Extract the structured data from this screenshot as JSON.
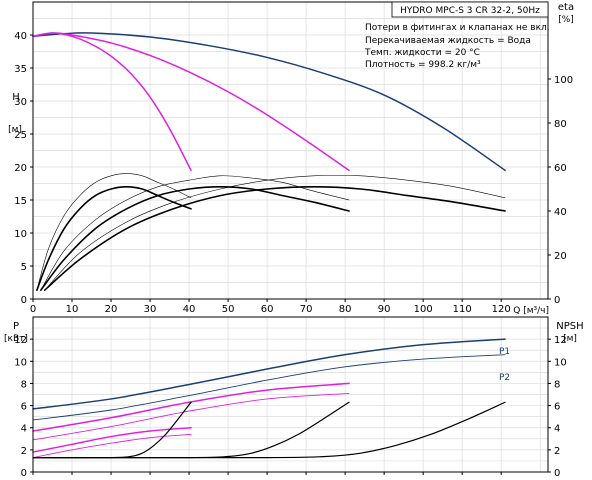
{
  "chart_data": [
    {
      "type": "line",
      "title": "HYDRO MPC-S 3 CR 32-2, 50Hz",
      "annotations": [
        "Потери в фитингах и клапанах не вкл.",
        "Перекачиваемая жидкость = Вода",
        "Темп. жидкости = 20 °C",
        "Плотность = 998.2 кг/м³"
      ],
      "xlabel": "Q [м³/ч]",
      "x_ticks": [
        0,
        10,
        20,
        30,
        40,
        50,
        60,
        70,
        80,
        90,
        100,
        110,
        120
      ],
      "xlim": [
        0,
        132
      ],
      "ylabel": "H",
      "yunit": "[м]",
      "ylim": [
        0,
        45
      ],
      "y_ticks": [
        0,
        5,
        10,
        15,
        20,
        25,
        30,
        35,
        40
      ],
      "y2label": "eta",
      "y2unit": "[%]",
      "y2lim": [
        0,
        135
      ],
      "y2_ticks": [
        0,
        20,
        40,
        60,
        80,
        100
      ],
      "grid": true,
      "series": [
        {
          "kind": "head",
          "color": "#1a3f73",
          "axis": "left",
          "x": [
            0,
            8,
            15,
            30,
            45,
            60,
            75,
            90,
            105,
            121
          ],
          "y": [
            39.8,
            40.2,
            40.3,
            39.7,
            38.4,
            36.6,
            34.1,
            30.9,
            26.0,
            19.5
          ]
        },
        {
          "kind": "head",
          "color": "#e020e0",
          "axis": "left",
          "x": [
            0,
            5,
            10,
            20,
            30,
            40,
            50,
            60,
            70,
            81
          ],
          "y": [
            39.8,
            40.3,
            40.0,
            38.8,
            36.9,
            34.4,
            31.4,
            27.9,
            24.0,
            19.5
          ]
        },
        {
          "kind": "head",
          "color": "#e020e0",
          "axis": "left",
          "x": [
            0,
            5,
            10,
            15,
            20,
            25,
            30,
            35,
            40.5
          ],
          "y": [
            39.8,
            40.3,
            39.8,
            38.6,
            36.8,
            34.2,
            30.6,
            25.8,
            19.5
          ]
        },
        {
          "kind": "efficiency",
          "color": "#000000",
          "width": 1.6,
          "axis": "right",
          "x": [
            1,
            4,
            8,
            12,
            16,
            20,
            24,
            28,
            32,
            36,
            40.5
          ],
          "y": [
            4,
            18,
            32,
            41,
            47,
            50,
            51,
            50,
            47,
            44,
            41
          ]
        },
        {
          "kind": "efficiency",
          "color": "#000000",
          "width": 1.6,
          "axis": "right",
          "x": [
            2,
            8,
            16,
            24,
            32,
            40,
            48,
            56,
            64,
            72,
            81
          ],
          "y": [
            4,
            18,
            32,
            41,
            47,
            50,
            51,
            50,
            47,
            44,
            40
          ]
        },
        {
          "kind": "efficiency",
          "color": "#000000",
          "width": 1.6,
          "axis": "right",
          "x": [
            3,
            12,
            24,
            36,
            48,
            60,
            72,
            84,
            96,
            108,
            121
          ],
          "y": [
            4,
            18,
            32,
            41,
            47,
            50,
            51,
            50,
            47,
            44,
            40
          ]
        },
        {
          "kind": "efficiency",
          "color": "#000000",
          "width": 0.6,
          "axis": "right",
          "x": [
            1,
            4,
            8,
            12,
            16,
            20,
            24,
            28,
            32,
            36,
            40.5
          ],
          "y": [
            4,
            23,
            38,
            47,
            53,
            56,
            57,
            56,
            53,
            50,
            46
          ]
        },
        {
          "kind": "efficiency",
          "color": "#000000",
          "width": 0.6,
          "axis": "right",
          "x": [
            2,
            8,
            16,
            24,
            32,
            40,
            48,
            56,
            64,
            72,
            81
          ],
          "y": [
            4,
            22,
            36,
            45,
            51,
            54,
            56,
            55,
            53,
            49,
            45
          ]
        },
        {
          "kind": "efficiency",
          "color": "#000000",
          "width": 0.6,
          "axis": "right",
          "x": [
            3,
            12,
            24,
            36,
            48,
            60,
            72,
            84,
            96,
            108,
            121
          ],
          "y": [
            4,
            21,
            35,
            44,
            50,
            54,
            56,
            56,
            54,
            51,
            46
          ]
        }
      ]
    },
    {
      "type": "line",
      "xlim": [
        0,
        132
      ],
      "ylabel": "P",
      "yunit": "[кВт]",
      "ylim": [
        0,
        14
      ],
      "y_ticks": [
        0,
        2,
        4,
        6,
        8,
        10,
        12
      ],
      "y2label": "NPSH",
      "y2unit": "[м]",
      "y2lim": [
        0,
        14
      ],
      "y2_ticks": [
        0,
        2,
        4,
        6,
        8,
        10,
        12
      ],
      "grid": true,
      "series": [
        {
          "kind": "power",
          "name": "P1",
          "color": "#1a3f73",
          "width": 1.5,
          "axis": "left",
          "x": [
            0,
            20,
            40,
            60,
            80,
            100,
            121
          ],
          "y": [
            5.7,
            6.6,
            7.9,
            9.3,
            10.6,
            11.5,
            12.0
          ]
        },
        {
          "kind": "power",
          "name": "P2",
          "color": "#1a3f73",
          "width": 0.9,
          "axis": "left",
          "x": [
            0,
            20,
            40,
            60,
            80,
            100,
            121
          ],
          "y": [
            4.7,
            5.6,
            6.9,
            8.3,
            9.5,
            10.2,
            10.6
          ]
        },
        {
          "kind": "power",
          "color": "#e020e0",
          "width": 1.5,
          "axis": "left",
          "x": [
            0,
            20,
            40,
            60,
            81
          ],
          "y": [
            3.7,
            4.9,
            6.3,
            7.4,
            8.0
          ]
        },
        {
          "kind": "power",
          "color": "#e020e0",
          "width": 0.9,
          "axis": "left",
          "x": [
            0,
            20,
            40,
            60,
            81
          ],
          "y": [
            2.9,
            4.1,
            5.5,
            6.6,
            7.1
          ]
        },
        {
          "kind": "power",
          "color": "#e020e0",
          "width": 1.5,
          "axis": "left",
          "x": [
            0,
            10,
            20,
            30,
            40.5
          ],
          "y": [
            1.8,
            2.5,
            3.2,
            3.7,
            4.0
          ]
        },
        {
          "kind": "power",
          "color": "#e020e0",
          "width": 0.9,
          "axis": "left",
          "x": [
            0,
            10,
            20,
            30,
            40.5
          ],
          "y": [
            1.3,
            2.0,
            2.6,
            3.1,
            3.4
          ]
        },
        {
          "kind": "npsh",
          "color": "#000000",
          "width": 1.2,
          "axis": "right",
          "x": [
            0,
            20,
            25,
            28,
            31,
            34,
            37,
            40.5
          ],
          "y": [
            1.3,
            1.3,
            1.4,
            1.7,
            2.4,
            3.4,
            4.7,
            6.3
          ]
        },
        {
          "kind": "npsh",
          "color": "#000000",
          "width": 1.2,
          "axis": "right",
          "x": [
            0,
            40,
            50,
            56,
            62,
            68,
            74,
            81
          ],
          "y": [
            1.3,
            1.3,
            1.4,
            1.7,
            2.4,
            3.4,
            4.7,
            6.3
          ]
        },
        {
          "kind": "npsh",
          "color": "#000000",
          "width": 1.2,
          "axis": "right",
          "x": [
            0,
            60,
            75,
            84,
            93,
            102,
            111,
            121
          ],
          "y": [
            1.3,
            1.3,
            1.4,
            1.7,
            2.4,
            3.4,
            4.7,
            6.3
          ]
        }
      ]
    }
  ]
}
